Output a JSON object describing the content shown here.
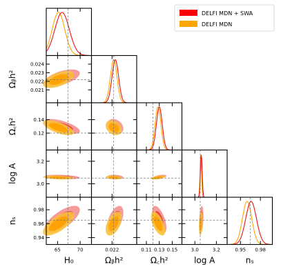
{
  "chart_data": {
    "type": "corner",
    "colors": {
      "swa_fill_outer": "#f4908f",
      "swa_fill_inner": "#ee3a3a",
      "swa_line": "#e8121a",
      "mdn_fill_outer": "#fbc33c",
      "mdn_fill_inner": "#ffa000",
      "mdn_line": "#ffa500",
      "reference": "#777777"
    },
    "legend": [
      {
        "name": "DELFI MDN + SWA",
        "color": "#ff0000"
      },
      {
        "name": "DELFI MDN",
        "color": "#ffa500"
      }
    ],
    "parameters": [
      {
        "id": "H0",
        "label": "H₀",
        "range": [
          62.5,
          72.5
        ],
        "ticks": [
          65,
          70
        ],
        "truth": 67.3,
        "swa_mean": 66.0,
        "swa_sd": 1.6,
        "mdn_mean": 65.2,
        "mdn_sd": 1.4
      },
      {
        "id": "ombh2",
        "label": "Ωᵦh²",
        "range": [
          0.0195,
          0.025
        ],
        "ticks": [
          0.021,
          0.022,
          0.023,
          0.024
        ],
        "xticks": [
          0.022
        ],
        "truth": 0.0222,
        "swa_mean": 0.0224,
        "swa_sd": 0.0004,
        "mdn_mean": 0.0222,
        "mdn_sd": 0.0004
      },
      {
        "id": "omch2",
        "label": "Ω꜀h²",
        "range": [
          0.095,
          0.165
        ],
        "ticks": [
          0.12,
          0.14
        ],
        "xticks": [
          0.11,
          0.13,
          0.15
        ],
        "truth": 0.12,
        "swa_mean": 0.13,
        "swa_sd": 0.0045,
        "mdn_mean": 0.128,
        "mdn_sd": 0.0045
      },
      {
        "id": "logA",
        "label": "log A",
        "range": [
          2.88,
          3.3
        ],
        "ticks": [
          3.0,
          3.2
        ],
        "xticks": [
          3.0,
          3.2
        ],
        "truth": 3.05,
        "swa_mean": 3.06,
        "swa_sd": 0.008,
        "mdn_mean": 3.055,
        "mdn_sd": 0.007
      },
      {
        "id": "ns",
        "label": "nₛ",
        "range": [
          0.93,
          0.998
        ],
        "ticks": [
          0.94,
          0.96,
          0.98
        ],
        "xticks": [
          0.95,
          0.98
        ],
        "truth": 0.965,
        "swa_mean": 0.966,
        "swa_sd": 0.008,
        "mdn_mean": 0.96,
        "mdn_sd": 0.007
      }
    ],
    "tick_labels": {
      "H0": [
        "65",
        "70"
      ],
      "ombh2_x": [
        "0.022"
      ],
      "ombh2_y": [
        "0.021",
        "0.022",
        "0.023",
        "0.024"
      ],
      "omch2_x": [
        "0.11",
        "0.13",
        "0.15"
      ],
      "omch2_y": [
        "0.12",
        "0.14"
      ],
      "logA": [
        "3.0",
        "3.2"
      ],
      "ns_x": [
        "0.95",
        "0.98"
      ],
      "ns_y": [
        "0.94",
        "0.96",
        "0.98"
      ]
    },
    "correlations": [
      {
        "pair": [
          "ombh2",
          "H0"
        ],
        "rho": 0.55
      },
      {
        "pair": [
          "omch2",
          "H0"
        ],
        "rho": -0.65
      },
      {
        "pair": [
          "omch2",
          "ombh2"
        ],
        "rho": -0.3
      },
      {
        "pair": [
          "logA",
          "H0"
        ],
        "rho": -0.3
      },
      {
        "pair": [
          "logA",
          "ombh2"
        ],
        "rho": -0.2
      },
      {
        "pair": [
          "logA",
          "omch2"
        ],
        "rho": 0.5
      },
      {
        "pair": [
          "ns",
          "H0"
        ],
        "rho": 0.7
      },
      {
        "pair": [
          "ns",
          "ombh2"
        ],
        "rho": 0.5
      },
      {
        "pair": [
          "ns",
          "omch2"
        ],
        "rho": -0.6
      },
      {
        "pair": [
          "ns",
          "logA"
        ],
        "rho": 0.25
      }
    ]
  }
}
